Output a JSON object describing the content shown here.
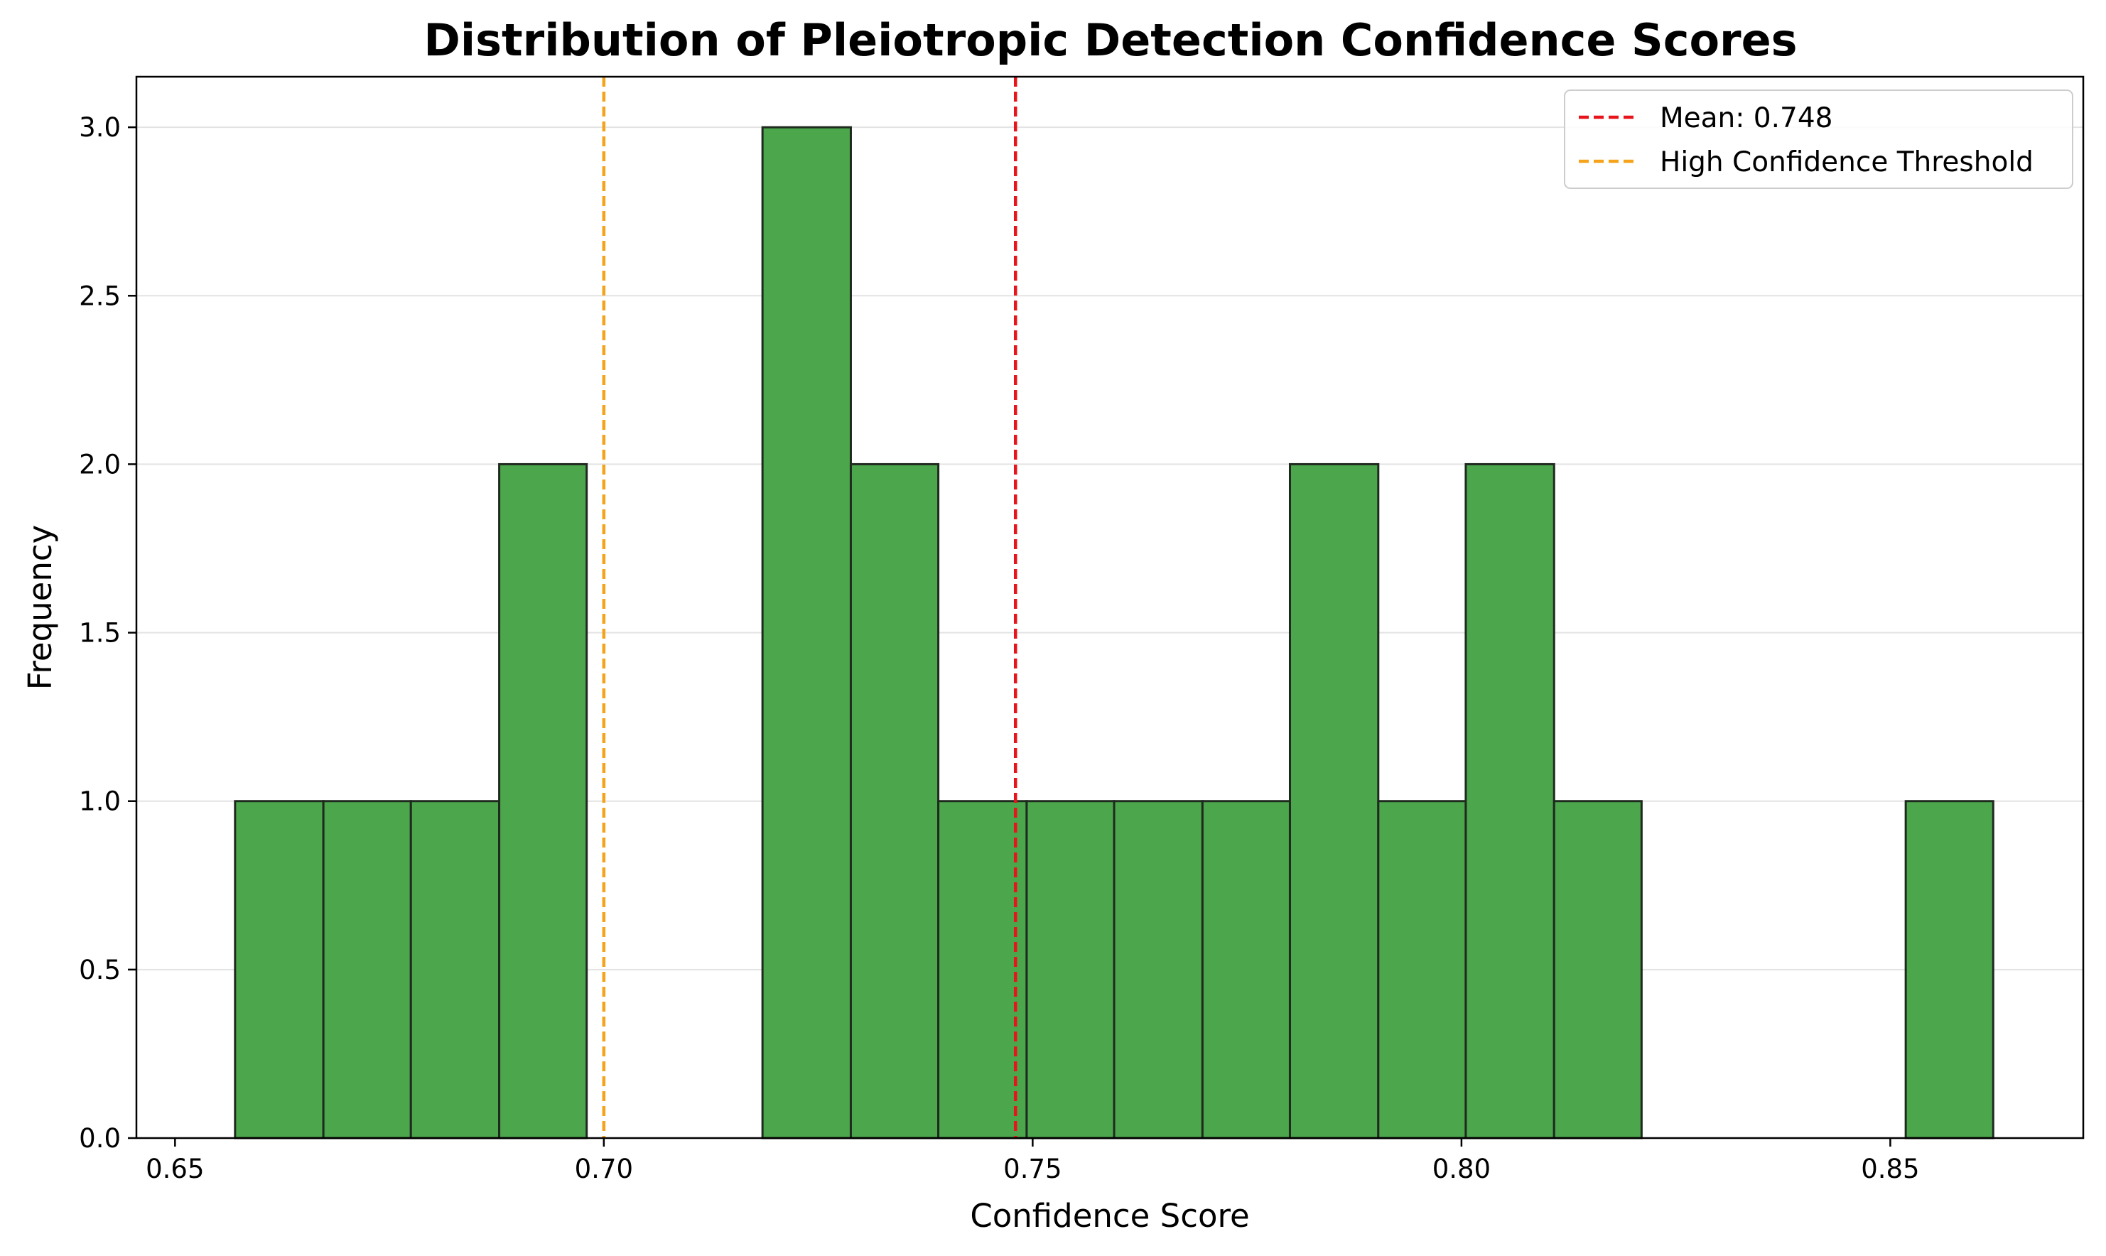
{
  "chart_data": {
    "type": "bar",
    "title": "Distribution of Pleiotropic Detection Confidence Scores",
    "xlabel": "Confidence Score",
    "ylabel": "Frequency",
    "xlim": [
      0.6455,
      0.8725
    ],
    "ylim": [
      0,
      3.15
    ],
    "x_ticks": [
      0.65,
      0.7,
      0.75,
      0.8,
      0.85
    ],
    "x_tick_labels": [
      "0.65",
      "0.70",
      "0.75",
      "0.80",
      "0.85"
    ],
    "y_ticks": [
      0,
      0.5,
      1.0,
      1.5,
      2.0,
      2.5,
      3.0
    ],
    "y_tick_labels": [
      "0.0",
      "0.5",
      "1.0",
      "1.5",
      "2.0",
      "2.5",
      "3.0"
    ],
    "bins": [
      {
        "x0": 0.657,
        "x1": 0.6673,
        "count": 1
      },
      {
        "x0": 0.6673,
        "x1": 0.6775,
        "count": 1
      },
      {
        "x0": 0.6775,
        "x1": 0.6878,
        "count": 1
      },
      {
        "x0": 0.6878,
        "x1": 0.698,
        "count": 2
      },
      {
        "x0": 0.698,
        "x1": 0.7083,
        "count": 0
      },
      {
        "x0": 0.7083,
        "x1": 0.7185,
        "count": 0
      },
      {
        "x0": 0.7185,
        "x1": 0.7288,
        "count": 3
      },
      {
        "x0": 0.7288,
        "x1": 0.739,
        "count": 2
      },
      {
        "x0": 0.739,
        "x1": 0.7493,
        "count": 1
      },
      {
        "x0": 0.7493,
        "x1": 0.7595,
        "count": 1
      },
      {
        "x0": 0.7595,
        "x1": 0.7698,
        "count": 1
      },
      {
        "x0": 0.7698,
        "x1": 0.78,
        "count": 1
      },
      {
        "x0": 0.78,
        "x1": 0.7903,
        "count": 2
      },
      {
        "x0": 0.7903,
        "x1": 0.8005,
        "count": 1
      },
      {
        "x0": 0.8005,
        "x1": 0.8108,
        "count": 2
      },
      {
        "x0": 0.8108,
        "x1": 0.821,
        "count": 1
      },
      {
        "x0": 0.821,
        "x1": 0.8313,
        "count": 0
      },
      {
        "x0": 0.8313,
        "x1": 0.8415,
        "count": 0
      },
      {
        "x0": 0.8415,
        "x1": 0.8518,
        "count": 0
      },
      {
        "x0": 0.8518,
        "x1": 0.862,
        "count": 1
      }
    ],
    "bar_color": "#4ca64c",
    "bar_edge_color": "#1f2a1f",
    "vlines": [
      {
        "label": "Mean: 0.748",
        "x": 0.748,
        "color": "#e8141c",
        "style": "dashed"
      },
      {
        "label": "High Confidence Threshold",
        "x": 0.7,
        "color": "#f5a31a",
        "style": "dashed"
      }
    ],
    "grid": "horizontal",
    "legend_position": "top-right"
  }
}
